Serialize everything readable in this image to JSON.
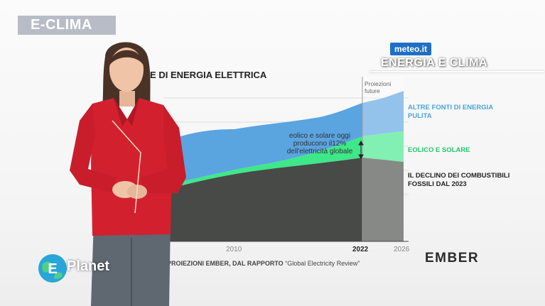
{
  "channel": {
    "badge_label": "E-CLIMA"
  },
  "meteo_logo": {
    "label": "meteo.it"
  },
  "show_title": "ENERGIA E CLIMA",
  "colors": {
    "fossil": "#474a47",
    "wind_solar": "#3ee889",
    "other_clean": "#5aa4e0",
    "badge": "#b8bcc6",
    "presenter_jacket": "#d3202f"
  },
  "chart_data": {
    "type": "area",
    "title": "ZIONE DI ENERGIA ELETTRICA",
    "x_ticks": [
      "2010",
      "2022",
      "2026"
    ],
    "projection_label": "Proiezioni future",
    "annotation": "eolico e solare oggi producono il12% dell'elettricità globale",
    "series": [
      {
        "name": "ALTRE FONTI DI ENERGIA PULITA"
      },
      {
        "name": "EOLICO E SOLARE"
      },
      {
        "name": "IL DECLINO DEI COMBUSTIBILI FOSSILI DAL 2023"
      }
    ]
  },
  "source_note": {
    "prefix": "PROIEZIONI EMBER, DAL RAPPORTO",
    "report": "“Global Electricity Review”"
  },
  "ember_logo": "EMBER",
  "planet_logo": {
    "letter": "E",
    "text": "Planet"
  }
}
